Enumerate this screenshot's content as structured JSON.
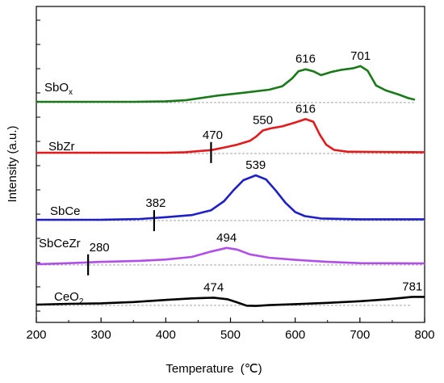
{
  "chart_data": {
    "type": "line",
    "xlabel": "Temperature",
    "xlabel_unit": "(℃)",
    "ylabel": "Intensity (a.u.)",
    "xlim": [
      200,
      800
    ],
    "x_ticks": [
      "200",
      "300",
      "400",
      "500",
      "600",
      "700",
      "800"
    ],
    "y_ticks_labeled": false,
    "grid": false,
    "legend": "none",
    "series": [
      {
        "name": "SbOx",
        "label_main": "SbO",
        "label_sub": "x",
        "color": "#1a7a1a",
        "points": [
          [
            200,
            0.0
          ],
          [
            250,
            0.0
          ],
          [
            300,
            0.0
          ],
          [
            350,
            0.0
          ],
          [
            400,
            0.2
          ],
          [
            430,
            0.6
          ],
          [
            450,
            1.3
          ],
          [
            480,
            2.4
          ],
          [
            520,
            3.5
          ],
          [
            560,
            4.7
          ],
          [
            580,
            6.0
          ],
          [
            595,
            9.0
          ],
          [
            605,
            11.8
          ],
          [
            616,
            12.6
          ],
          [
            628,
            11.8
          ],
          [
            640,
            10.3
          ],
          [
            655,
            11.5
          ],
          [
            670,
            12.3
          ],
          [
            690,
            13.0
          ],
          [
            701,
            13.8
          ],
          [
            712,
            12.0
          ],
          [
            725,
            6.3
          ],
          [
            740,
            4.4
          ],
          [
            760,
            2.8
          ],
          [
            775,
            1.4
          ],
          [
            785,
            0.8
          ]
        ],
        "baseline": [
          [
            200,
            -0.3
          ],
          [
            785,
            -0.3
          ]
        ]
      },
      {
        "name": "SbZr",
        "label_main": "SbZr",
        "label_sub": "",
        "color": "#e31a1c",
        "points": [
          [
            200,
            0.0
          ],
          [
            300,
            0.0
          ],
          [
            400,
            0.0
          ],
          [
            430,
            0.2
          ],
          [
            450,
            0.6
          ],
          [
            470,
            1.0
          ],
          [
            490,
            2.0
          ],
          [
            510,
            3.1
          ],
          [
            530,
            4.6
          ],
          [
            540,
            6.3
          ],
          [
            550,
            8.6
          ],
          [
            562,
            9.4
          ],
          [
            580,
            10.2
          ],
          [
            600,
            11.7
          ],
          [
            616,
            13.0
          ],
          [
            628,
            12.0
          ],
          [
            638,
            7.0
          ],
          [
            648,
            3.1
          ],
          [
            660,
            1.1
          ],
          [
            680,
            0.4
          ],
          [
            720,
            0.3
          ],
          [
            800,
            0.2
          ]
        ],
        "baseline": [
          [
            200,
            -0.3
          ],
          [
            800,
            -0.3
          ]
        ]
      },
      {
        "name": "SbCe",
        "label_main": "SbCe",
        "label_sub": "",
        "color": "#1f1fc8",
        "points": [
          [
            200,
            0.0
          ],
          [
            300,
            0.0
          ],
          [
            360,
            0.3
          ],
          [
            400,
            1.0
          ],
          [
            440,
            1.8
          ],
          [
            470,
            3.7
          ],
          [
            490,
            7.2
          ],
          [
            505,
            11.5
          ],
          [
            520,
            15.3
          ],
          [
            539,
            17.2
          ],
          [
            555,
            15.6
          ],
          [
            570,
            11.3
          ],
          [
            585,
            6.6
          ],
          [
            600,
            3.0
          ],
          [
            615,
            1.4
          ],
          [
            640,
            0.5
          ],
          [
            700,
            0.2
          ],
          [
            800,
            0.2
          ]
        ],
        "baseline": [
          [
            200,
            -0.3
          ],
          [
            800,
            -0.3
          ]
        ]
      },
      {
        "name": "SbCeZr",
        "label_main": "SbCeZr",
        "label_sub": "",
        "color": "#b14ee8",
        "points": [
          [
            200,
            0.0
          ],
          [
            260,
            0.5
          ],
          [
            300,
            0.9
          ],
          [
            360,
            1.3
          ],
          [
            400,
            1.8
          ],
          [
            440,
            2.8
          ],
          [
            470,
            4.9
          ],
          [
            494,
            6.3
          ],
          [
            510,
            5.7
          ],
          [
            530,
            3.8
          ],
          [
            560,
            2.5
          ],
          [
            600,
            1.7
          ],
          [
            650,
            0.9
          ],
          [
            700,
            0.4
          ],
          [
            800,
            0.3
          ]
        ],
        "baseline": [
          [
            200,
            -0.3
          ],
          [
            800,
            -0.3
          ]
        ]
      },
      {
        "name": "CeO2",
        "label_main": "CeO",
        "label_sub": "2",
        "color": "#000000",
        "points": [
          [
            200,
            0.0
          ],
          [
            250,
            0.3
          ],
          [
            300,
            0.5
          ],
          [
            350,
            1.0
          ],
          [
            400,
            1.8
          ],
          [
            440,
            2.4
          ],
          [
            474,
            2.7
          ],
          [
            495,
            2.1
          ],
          [
            510,
            0.9
          ],
          [
            525,
            -0.4
          ],
          [
            540,
            -0.5
          ],
          [
            560,
            -0.2
          ],
          [
            600,
            0.2
          ],
          [
            650,
            0.7
          ],
          [
            700,
            1.3
          ],
          [
            740,
            2.0
          ],
          [
            765,
            2.6
          ],
          [
            781,
            3.0
          ],
          [
            800,
            3.0
          ]
        ],
        "baseline": [
          [
            200,
            -0.3
          ],
          [
            780,
            -0.3
          ]
        ]
      }
    ],
    "annotations": [
      {
        "series": "SbOx",
        "text": "616",
        "x": 616,
        "y": 12.6
      },
      {
        "series": "SbOx",
        "text": "701",
        "x": 701,
        "y": 13.8
      },
      {
        "series": "SbZr",
        "text": "470",
        "x": 470,
        "y": 1.0,
        "onset_marker": true
      },
      {
        "series": "SbZr",
        "text": "550",
        "x": 550,
        "y": 8.6
      },
      {
        "series": "SbZr",
        "text": "616",
        "x": 616,
        "y": 13.0
      },
      {
        "series": "SbCe",
        "text": "382",
        "x": 382,
        "y": 0.6,
        "onset_marker": true
      },
      {
        "series": "SbCe",
        "text": "539",
        "x": 539,
        "y": 17.2
      },
      {
        "series": "SbCeZr",
        "text": "280",
        "x": 280,
        "y": 0.7,
        "onset_marker": true
      },
      {
        "series": "SbCeZr",
        "text": "494",
        "x": 494,
        "y": 6.3
      },
      {
        "series": "CeO2",
        "text": "474",
        "x": 474,
        "y": 2.7
      },
      {
        "series": "CeO2",
        "text": "781",
        "x": 781,
        "y": 3.0
      }
    ]
  }
}
